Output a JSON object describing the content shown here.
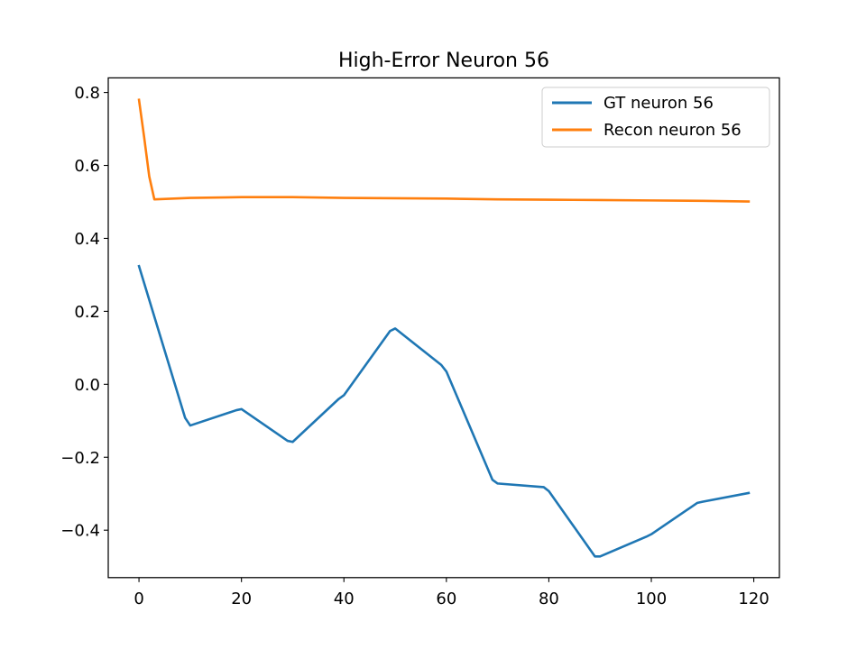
{
  "chart_data": {
    "type": "line",
    "title": "High-Error Neuron 56",
    "xlabel": "",
    "ylabel": "",
    "xlim": [
      -6,
      125
    ],
    "ylim": [
      -0.53,
      0.84
    ],
    "xticks": [
      0,
      20,
      40,
      60,
      80,
      100,
      120
    ],
    "xtick_labels": [
      "0",
      "20",
      "40",
      "60",
      "80",
      "100",
      "120"
    ],
    "yticks": [
      -0.4,
      -0.2,
      0.0,
      0.2,
      0.4,
      0.6,
      0.8
    ],
    "ytick_labels": [
      "−0.4",
      "−0.2",
      "0.0",
      "0.2",
      "0.4",
      "0.6",
      "0.8"
    ],
    "grid": false,
    "legend_position": "upper right",
    "series": [
      {
        "name": "GT neuron 56",
        "color": "#1f77b4",
        "x": [
          0,
          9,
          10,
          19,
          20,
          29,
          30,
          39,
          40,
          49,
          50,
          59,
          60,
          69,
          70,
          79,
          80,
          89,
          90,
          99,
          100,
          109,
          110,
          119
        ],
        "y": [
          0.324,
          -0.092,
          -0.113,
          -0.071,
          -0.068,
          -0.155,
          -0.158,
          -0.04,
          -0.03,
          0.146,
          0.153,
          0.053,
          0.035,
          -0.262,
          -0.272,
          -0.282,
          -0.293,
          -0.472,
          -0.472,
          -0.418,
          -0.411,
          -0.325,
          -0.322,
          -0.298
        ]
      },
      {
        "name": "Recon neuron 56",
        "color": "#ff7f0e",
        "x": [
          0,
          1,
          2,
          3,
          10,
          20,
          30,
          40,
          50,
          60,
          70,
          80,
          90,
          100,
          110,
          119
        ],
        "y": [
          0.78,
          0.678,
          0.57,
          0.507,
          0.511,
          0.513,
          0.513,
          0.511,
          0.51,
          0.509,
          0.507,
          0.506,
          0.505,
          0.504,
          0.503,
          0.501
        ]
      }
    ]
  }
}
